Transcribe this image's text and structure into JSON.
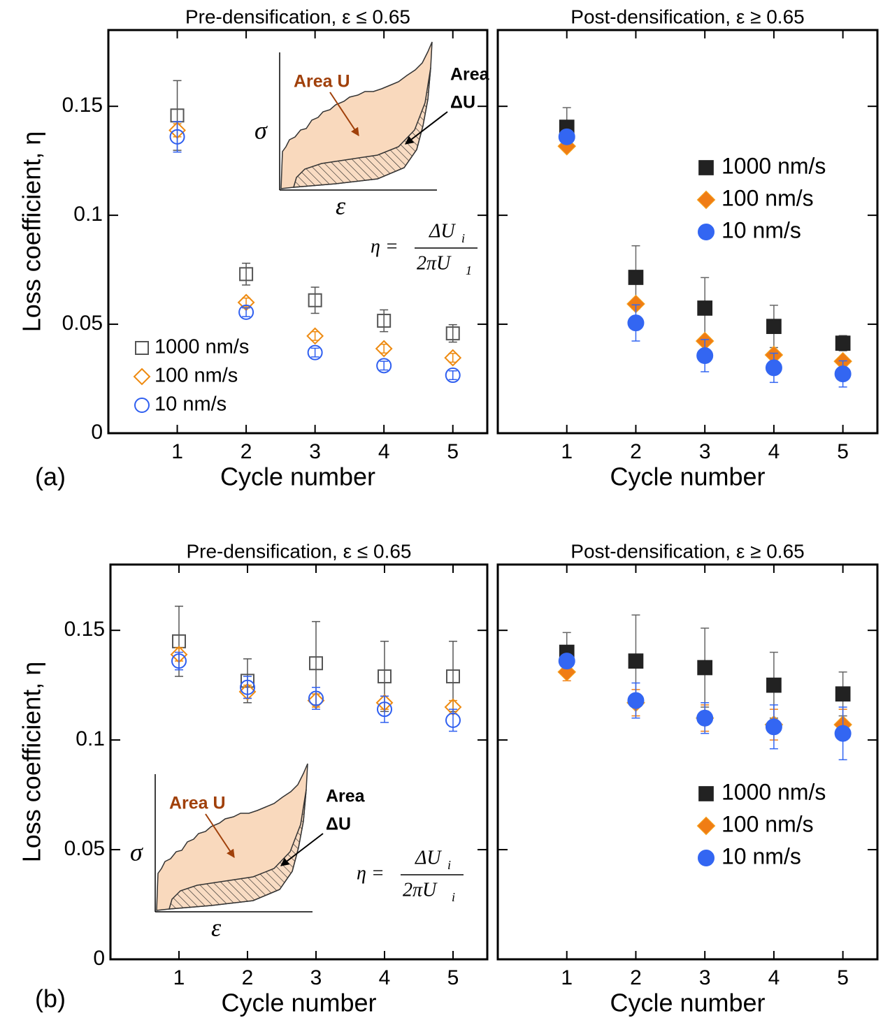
{
  "panel_labels": [
    "(a)",
    "(b)"
  ],
  "chart_data": [
    {
      "type": "scatter",
      "title": "Pre-densification, ε ≤ 0.65",
      "xlabel": "Cycle number",
      "ylabel": "Loss coefficient, η",
      "x": [
        1,
        2,
        3,
        4,
        5
      ],
      "xlim": [
        0,
        5.5
      ],
      "ylim": [
        0,
        0.185
      ],
      "xticks": [
        1,
        2,
        3,
        4,
        5
      ],
      "yticks": [
        0,
        0.05,
        0.1,
        0.15
      ],
      "ytick_labels": true,
      "legend": "lower left",
      "series": [
        {
          "name": "1000 nm/s",
          "color": "#555555",
          "marker": "square",
          "filled": false,
          "values": [
            0.1458,
            0.073,
            0.061,
            0.0516,
            0.0458
          ],
          "errors": [
            0.016,
            0.005,
            0.006,
            0.005,
            0.004
          ]
        },
        {
          "name": "100 nm/s",
          "color": "#ee8a10",
          "marker": "diamond",
          "filled": false,
          "values": [
            0.139,
            0.06,
            0.0446,
            0.0388,
            0.0346
          ],
          "errors": [
            0.003,
            0.002,
            0.002,
            0.002,
            0.002
          ]
        },
        {
          "name": "10 nm/s",
          "color": "#2f5ff0",
          "marker": "circle",
          "filled": false,
          "values": [
            0.136,
            0.0555,
            0.037,
            0.031,
            0.0266
          ],
          "errors": [
            0.007,
            0.002,
            0.002,
            0.002,
            0.002
          ]
        }
      ],
      "inset": {
        "region_label": "Area U",
        "hysteresis_label": [
          "Area",
          "ΔU"
        ],
        "ylabel": "σ",
        "xlabel": "ε"
      },
      "formula": {
        "lhs": "η =",
        "num": "ΔU",
        "num_sub": "i",
        "den": "2πU",
        "den_sub": "1"
      }
    },
    {
      "type": "scatter",
      "title": "Post-densification, ε ≥ 0.65",
      "xlabel": "Cycle number",
      "x": [
        1,
        2,
        3,
        4,
        5
      ],
      "xlim": [
        0,
        5.5
      ],
      "ylim": [
        0,
        0.185
      ],
      "xticks": [
        1,
        2,
        3,
        4,
        5
      ],
      "yticks": [
        0,
        0.05,
        0.1,
        0.15
      ],
      "ytick_labels": false,
      "legend": "upper right",
      "series": [
        {
          "name": "1000 nm/s",
          "color": "#222222",
          "marker": "square",
          "filled": true,
          "values": [
            0.1404,
            0.0715,
            0.0574,
            0.049,
            0.0413
          ],
          "errors": [
            0.009,
            0.0145,
            0.014,
            0.0097,
            0.0035
          ]
        },
        {
          "name": "100 nm/s",
          "color": "#f07d14",
          "marker": "diamond",
          "filled": true,
          "values": [
            0.1317,
            0.0593,
            0.0423,
            0.0359,
            0.033
          ],
          "errors": [
            0.002,
            0.002,
            0.002,
            0.002,
            0.002
          ]
        },
        {
          "name": "10 nm/s",
          "color": "#3366f2",
          "marker": "circle",
          "filled": true,
          "values": [
            0.136,
            0.0506,
            0.0356,
            0.03,
            0.0272
          ],
          "errors": [
            0.002,
            0.0083,
            0.0074,
            0.0067,
            0.006
          ]
        }
      ]
    },
    {
      "type": "scatter",
      "title": "Pre-densification, ε ≤ 0.65",
      "xlabel": "Cycle number",
      "ylabel": "Loss coefficient, η",
      "x": [
        1,
        2,
        3,
        4,
        5
      ],
      "xlim": [
        0,
        5.5
      ],
      "ylim": [
        0,
        0.18
      ],
      "xticks": [
        1,
        2,
        3,
        4,
        5
      ],
      "yticks": [
        0,
        0.05,
        0.1,
        0.15
      ],
      "ytick_labels": true,
      "series": [
        {
          "color": "#555555",
          "marker": "square",
          "filled": false,
          "values": [
            0.145,
            0.127,
            0.135,
            0.129,
            0.129
          ],
          "errors": [
            0.016,
            0.01,
            0.019,
            0.016,
            0.016
          ]
        },
        {
          "color": "#ee8a10",
          "marker": "diamond",
          "filled": false,
          "values": [
            0.139,
            0.122,
            0.118,
            0.117,
            0.115
          ],
          "errors": [
            0.003,
            0.003,
            0.003,
            0.003,
            0.003
          ]
        },
        {
          "color": "#2f5ff0",
          "marker": "circle",
          "filled": false,
          "values": [
            0.136,
            0.124,
            0.119,
            0.114,
            0.109
          ],
          "errors": [
            0.004,
            0.005,
            0.005,
            0.006,
            0.005
          ]
        }
      ],
      "inset": {
        "region_label": "Area U",
        "hysteresis_label": [
          "Area",
          "ΔU"
        ],
        "ylabel": "σ",
        "xlabel": "ε"
      },
      "formula": {
        "lhs": "η =",
        "num": "ΔU",
        "num_sub": "i",
        "den": "2πU",
        "den_sub": "i"
      }
    },
    {
      "type": "scatter",
      "title": "Post-densification, ε ≥ 0.65",
      "xlabel": "Cycle number",
      "x": [
        1,
        2,
        3,
        4,
        5
      ],
      "xlim": [
        0,
        5.5
      ],
      "ylim": [
        0,
        0.18
      ],
      "xticks": [
        1,
        2,
        3,
        4,
        5
      ],
      "yticks": [
        0,
        0.05,
        0.1,
        0.15
      ],
      "ytick_labels": false,
      "legend": "lower right",
      "series": [
        {
          "name": "1000 nm/s",
          "color": "#222222",
          "marker": "square",
          "filled": true,
          "values": [
            0.14,
            0.136,
            0.133,
            0.125,
            0.121
          ],
          "errors": [
            0.009,
            0.021,
            0.018,
            0.015,
            0.01
          ]
        },
        {
          "name": "100 nm/s",
          "color": "#f07d14",
          "marker": "diamond",
          "filled": true,
          "values": [
            0.131,
            0.117,
            0.11,
            0.107,
            0.107
          ],
          "errors": [
            0.004,
            0.006,
            0.006,
            0.007,
            0.007
          ]
        },
        {
          "name": "10 nm/s",
          "color": "#3366f2",
          "marker": "circle",
          "filled": true,
          "values": [
            0.136,
            0.118,
            0.11,
            0.106,
            0.103
          ],
          "errors": [
            0.003,
            0.008,
            0.007,
            0.01,
            0.012
          ]
        }
      ]
    }
  ]
}
